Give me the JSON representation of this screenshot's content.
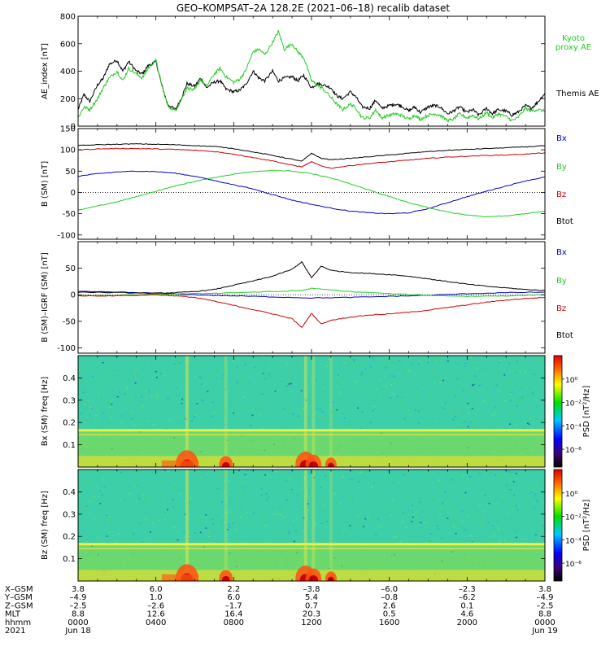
{
  "title": "GEO–KOMPSAT–2A 128.2E (2021–06–18) recalib dataset",
  "x_range": [
    0,
    24
  ],
  "chart_data": [
    {
      "type": "line",
      "name": "ae",
      "ylabel": "AE_index [nT]",
      "ylim": [
        0,
        800
      ],
      "yticks": [
        0,
        200,
        400,
        600,
        800
      ],
      "legend": [
        {
          "text": "Kyoto proxy AE",
          "color": "#22cc22"
        },
        {
          "text": "Themis AE",
          "color": "#000000"
        }
      ],
      "series": [
        {
          "name": "Themis AE",
          "color": "#000000",
          "x": [
            0,
            0.3,
            0.6,
            1,
            1.3,
            1.6,
            2,
            2.3,
            2.6,
            3,
            3.3,
            3.6,
            4,
            4.3,
            4.6,
            5,
            5.3,
            5.6,
            6,
            6.3,
            6.6,
            7,
            7.3,
            7.6,
            8,
            8.3,
            8.6,
            9,
            9.3,
            9.6,
            10,
            10.3,
            10.6,
            11,
            11.3,
            11.6,
            12,
            12.3,
            12.6,
            13,
            13.3,
            13.6,
            14,
            14.3,
            14.6,
            15,
            15.3,
            15.6,
            16,
            16.3,
            16.6,
            17,
            17.3,
            17.6,
            18,
            18.3,
            18.6,
            19,
            19.3,
            19.6,
            20,
            20.3,
            20.6,
            21,
            21.3,
            21.6,
            22,
            22.3,
            22.6,
            23,
            23.3,
            23.6,
            24
          ],
          "y": [
            120,
            230,
            180,
            300,
            350,
            450,
            480,
            400,
            470,
            400,
            380,
            440,
            470,
            300,
            160,
            120,
            200,
            310,
            290,
            350,
            280,
            320,
            330,
            270,
            250,
            260,
            300,
            400,
            350,
            330,
            400,
            330,
            350,
            360,
            330,
            370,
            280,
            310,
            300,
            280,
            220,
            200,
            250,
            210,
            140,
            130,
            190,
            130,
            150,
            160,
            150,
            110,
            140,
            100,
            140,
            150,
            140,
            90,
            110,
            140,
            100,
            120,
            80,
            130,
            90,
            120,
            110,
            80,
            100,
            150,
            130,
            170,
            240
          ]
        },
        {
          "name": "Kyoto proxy AE",
          "color": "#22cc22",
          "x": [
            0,
            0.3,
            0.6,
            1,
            1.3,
            1.6,
            2,
            2.3,
            2.6,
            3,
            3.3,
            3.6,
            4,
            4.3,
            4.6,
            5,
            5.3,
            5.6,
            6,
            6.3,
            6.6,
            7,
            7.3,
            7.6,
            8,
            8.3,
            8.6,
            9,
            9.3,
            9.6,
            10,
            10.3,
            10.6,
            11,
            11.3,
            11.6,
            12,
            12.3,
            12.6,
            13,
            13.3,
            13.6,
            14,
            14.3,
            14.6,
            15,
            15.3,
            15.6,
            16,
            16.3,
            16.6,
            17,
            17.3,
            17.6,
            18,
            18.3,
            18.6,
            19,
            19.3,
            19.6,
            20,
            20.3,
            20.6,
            21,
            21.3,
            21.6,
            22,
            22.3,
            22.6,
            23,
            23.3,
            23.6,
            24
          ],
          "y": [
            60,
            140,
            120,
            200,
            280,
            350,
            400,
            330,
            420,
            380,
            350,
            420,
            480,
            300,
            150,
            110,
            190,
            280,
            260,
            340,
            290,
            380,
            420,
            360,
            320,
            340,
            400,
            540,
            560,
            520,
            610,
            690,
            560,
            600,
            540,
            500,
            330,
            300,
            270,
            210,
            160,
            120,
            160,
            130,
            60,
            60,
            120,
            60,
            80,
            90,
            80,
            50,
            80,
            50,
            80,
            90,
            80,
            40,
            50,
            90,
            60,
            80,
            50,
            100,
            60,
            90,
            70,
            40,
            60,
            130,
            110,
            120,
            110
          ]
        }
      ]
    },
    {
      "type": "line",
      "name": "bsm",
      "ylabel": "B (SM) [nT]",
      "ylim": [
        -110,
        150
      ],
      "yticks": [
        -100,
        -50,
        0,
        50,
        100,
        150
      ],
      "legend": [
        {
          "text": "Bx",
          "color": "#0000cc"
        },
        {
          "text": "By",
          "color": "#22cc22"
        },
        {
          "text": "Bz",
          "color": "#cc0000"
        },
        {
          "text": "Btot",
          "color": "#000000"
        }
      ],
      "series": [
        {
          "name": "Bx",
          "color": "#0000cc",
          "x": [
            0,
            1,
            2,
            3,
            4,
            5,
            6,
            7,
            8,
            9,
            10,
            11,
            12,
            13,
            14,
            15,
            16,
            17,
            18,
            19,
            20,
            21,
            22,
            23,
            24
          ],
          "y": [
            38,
            44,
            48,
            50,
            49,
            45,
            38,
            28,
            18,
            8,
            -5,
            -18,
            -28,
            -37,
            -44,
            -48,
            -50,
            -48,
            -38,
            -24,
            -10,
            3,
            15,
            27,
            36
          ]
        },
        {
          "name": "By",
          "color": "#22cc22",
          "x": [
            0,
            1,
            2,
            3,
            4,
            5,
            6,
            7,
            8,
            9,
            10,
            11,
            12,
            13,
            14,
            15,
            16,
            17,
            18,
            19,
            20,
            21,
            22,
            23,
            24
          ],
          "y": [
            -42,
            -32,
            -22,
            -10,
            3,
            15,
            26,
            35,
            43,
            49,
            52,
            50,
            44,
            34,
            20,
            5,
            -10,
            -24,
            -36,
            -46,
            -53,
            -57,
            -55,
            -50,
            -44
          ]
        },
        {
          "name": "Bz",
          "color": "#cc0000",
          "x": [
            0,
            1,
            2,
            3,
            4,
            5,
            6,
            7,
            8,
            9,
            10,
            11,
            11.5,
            12,
            12.5,
            13,
            14,
            15,
            16,
            17,
            18,
            19,
            20,
            21,
            22,
            23,
            24
          ],
          "y": [
            100,
            102,
            103,
            103,
            102,
            101,
            99,
            96,
            90,
            82,
            74,
            64,
            60,
            72,
            62,
            57,
            63,
            68,
            72,
            76,
            80,
            83,
            85,
            87,
            88,
            90,
            93
          ]
        },
        {
          "name": "Btot",
          "color": "#000000",
          "x": [
            0,
            1,
            2,
            3,
            4,
            5,
            6,
            7,
            8,
            9,
            10,
            11,
            11.5,
            12,
            12.5,
            13,
            14,
            15,
            16,
            17,
            18,
            19,
            20,
            21,
            22,
            23,
            24
          ],
          "y": [
            110,
            112,
            113,
            114,
            113,
            112,
            110,
            108,
            103,
            95,
            87,
            78,
            73,
            92,
            80,
            77,
            80,
            84,
            88,
            92,
            96,
            99,
            101,
            103,
            105,
            107,
            110
          ]
        }
      ]
    },
    {
      "type": "line",
      "name": "bdiff",
      "ylabel": "B (SM)–IGRF (SM) [nT]",
      "ylim": [
        -110,
        100
      ],
      "yticks": [
        -100,
        -50,
        0,
        50
      ],
      "legend": [
        {
          "text": "Bx",
          "color": "#0000cc"
        },
        {
          "text": "By",
          "color": "#22cc22"
        },
        {
          "text": "Bz",
          "color": "#cc0000"
        },
        {
          "text": "Btot",
          "color": "#000000"
        }
      ],
      "series": [
        {
          "name": "Bx",
          "color": "#0000cc",
          "x": [
            0,
            2,
            4,
            6,
            8,
            10,
            12,
            14,
            16,
            18,
            20,
            22,
            24
          ],
          "y": [
            6,
            5,
            3,
            0,
            -2,
            -4,
            -6,
            -5,
            -3,
            -1,
            2,
            4,
            5
          ]
        },
        {
          "name": "By",
          "color": "#22cc22",
          "x": [
            0,
            2,
            4,
            6,
            8,
            10,
            11.5,
            12,
            14,
            16,
            18,
            20,
            22,
            24
          ],
          "y": [
            -2,
            -1,
            1,
            2,
            4,
            6,
            8,
            12,
            6,
            2,
            -1,
            -3,
            -2,
            0
          ]
        },
        {
          "name": "Btot",
          "color": "#000000",
          "x": [
            0,
            2,
            4,
            5,
            6,
            7,
            8,
            9,
            10,
            11,
            11.5,
            12,
            12.5,
            13,
            14,
            15,
            16,
            17,
            18,
            19,
            20,
            21,
            22,
            23,
            24
          ],
          "y": [
            5,
            4,
            3,
            4,
            6,
            10,
            18,
            26,
            35,
            48,
            62,
            32,
            54,
            46,
            42,
            40,
            38,
            35,
            30,
            25,
            20,
            16,
            13,
            10,
            8
          ]
        },
        {
          "name": "Bz",
          "color": "#cc0000",
          "x": [
            0,
            2,
            4,
            5,
            6,
            7,
            8,
            9,
            10,
            11,
            11.5,
            12,
            12.5,
            13,
            14,
            15,
            16,
            17,
            18,
            19,
            20,
            21,
            22,
            23,
            24
          ],
          "y": [
            -2,
            -2,
            0,
            -2,
            -5,
            -12,
            -20,
            -28,
            -36,
            -45,
            -62,
            -35,
            -55,
            -48,
            -42,
            -38,
            -36,
            -33,
            -29,
            -24,
            -19,
            -14,
            -10,
            -7,
            -5
          ]
        }
      ]
    },
    {
      "type": "heatmap",
      "name": "bx_psd",
      "ylabel": "Bx (SM) freq [Hz]",
      "ylim": [
        0,
        0.5
      ],
      "yticks": [
        0.1,
        0.2,
        0.3,
        0.4
      ],
      "colorbar_label": "PSD [nT²/Hz]",
      "colorbar_ticks": [
        "10⁰",
        "10⁻²",
        "10⁻⁴",
        "10⁻⁶"
      ]
    },
    {
      "type": "heatmap",
      "name": "bz_psd",
      "ylabel": "Bz (SM) freq [Hz]",
      "ylim": [
        0,
        0.5
      ],
      "yticks": [
        0.1,
        0.2,
        0.3,
        0.4
      ],
      "colorbar_label": "PSD [nT²/Hz]",
      "colorbar_ticks": [
        "10⁰",
        "10⁻²",
        "10⁻⁴",
        "10⁻⁶"
      ]
    }
  ],
  "ephemeris": {
    "row_labels": [
      "X–GSM",
      "Y–GSM",
      "Z–GSM",
      "MLT",
      "hhmm",
      "2021"
    ],
    "columns": [
      {
        "x": 0,
        "values": [
          "3.8",
          "–4.9",
          "–2.5",
          "8.8",
          "0000",
          "Jun 18"
        ]
      },
      {
        "x": 4,
        "values": [
          "6.0",
          "1.0",
          "–2.6",
          "12.6",
          "0400",
          ""
        ]
      },
      {
        "x": 8,
        "values": [
          "2.2",
          "6.0",
          "–1.7",
          "16.4",
          "0800",
          ""
        ]
      },
      {
        "x": 12,
        "values": [
          "–3.8",
          "5.4",
          "0.7",
          "20.3",
          "1200",
          ""
        ]
      },
      {
        "x": 16,
        "values": [
          "–6.0",
          "–0.8",
          "2.6",
          "0.5",
          "1600",
          ""
        ]
      },
      {
        "x": 20,
        "values": [
          "–2.3",
          "–6.2",
          "0.1",
          "4.6",
          "2000",
          ""
        ]
      },
      {
        "x": 24,
        "values": [
          "3.8",
          "–4.9",
          "–2.5",
          "8.8",
          "0000",
          "Jun 19"
        ]
      }
    ]
  }
}
